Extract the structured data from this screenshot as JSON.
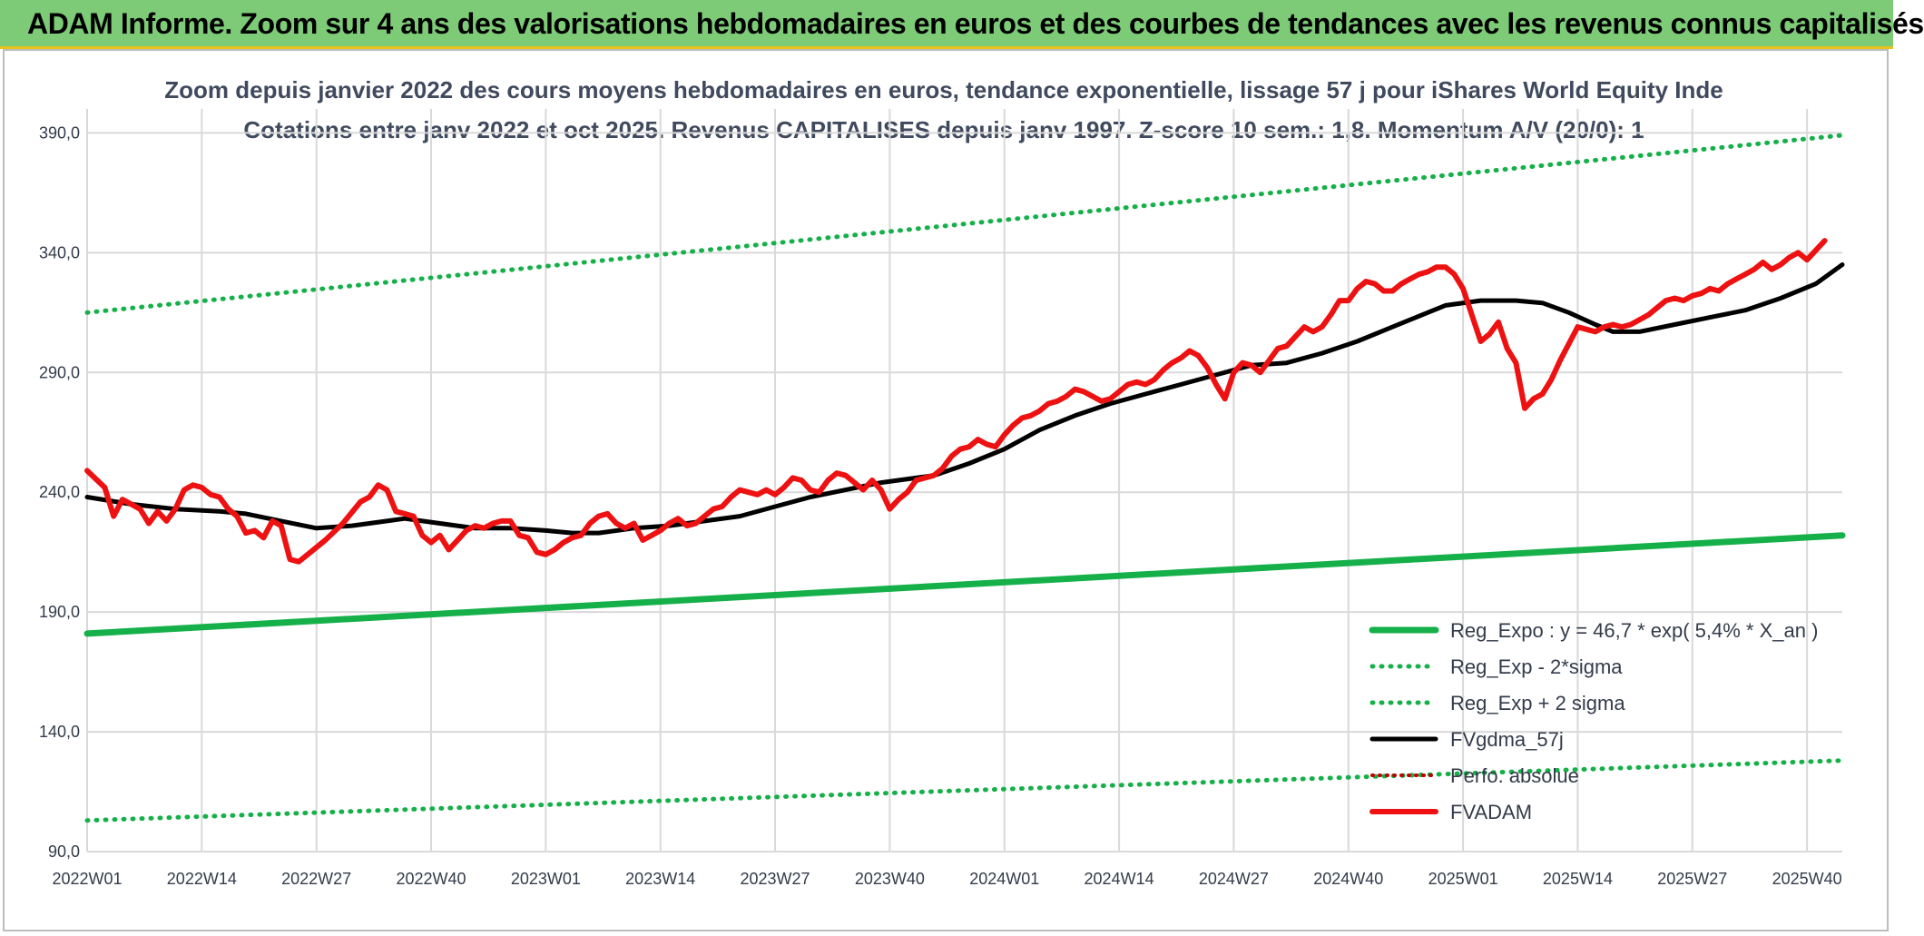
{
  "header": {
    "title": "ADAM Informe. Zoom sur 4 ans des valorisations hebdomadaires en euros et des courbes de tendances avec les revenus connus capitalisés"
  },
  "chart_data": {
    "type": "line",
    "title_line1": "Zoom depuis janvier 2022 des cours moyens hebdomadaires en euros, tendance exponentielle, lissage 57 j pour iShares World Equity Inde",
    "title_line2": "Cotations entre janv 2022 et oct 2025. Revenus CAPITALISES depuis janv 1997. Z-score 10 sem.: 1,8. Momentum A/V (20/0): 1",
    "ylim": [
      90,
      400
    ],
    "y_ticks": [
      90,
      140,
      190,
      240,
      290,
      340,
      390
    ],
    "y_tick_labels": [
      "90,0",
      "140,0",
      "190,0",
      "240,0",
      "290,0",
      "340,0",
      "390,0"
    ],
    "x_tick_positions": [
      0,
      13,
      26,
      39,
      52,
      65,
      78,
      91,
      104,
      117,
      130,
      143,
      156,
      169,
      182,
      195
    ],
    "x_tick_labels": [
      "2022W01",
      "2022W14",
      "2022W27",
      "2022W40",
      "2023W01",
      "2023W14",
      "2023W27",
      "2023W40",
      "2024W01",
      "2024W14",
      "2024W27",
      "2024W40",
      "2025W01",
      "2025W14",
      "2025W27",
      "2025W40"
    ],
    "grid": true,
    "legend_position": "bottom-right",
    "colors": {
      "reg_expo": "#16b04a",
      "band": "#16b04a",
      "fvgdma": "#000000",
      "perfo": "#c00000",
      "fvadam": "#ee1111",
      "grid": "#d9d9d9"
    },
    "series": [
      {
        "key": "reg_expo",
        "name": "Reg_Expo : y = 46,7 * exp( 5,4% *  X_an )",
        "style": "solid-thick",
        "points": [
          [
            0,
            181
          ],
          [
            199,
            222
          ]
        ]
      },
      {
        "key": "band_low",
        "name": "Reg_Exp - 2*sigma",
        "style": "dotted",
        "points": [
          [
            0,
            103
          ],
          [
            199,
            128
          ]
        ]
      },
      {
        "key": "band_high",
        "name": "Reg_Exp + 2 sigma",
        "style": "dotted",
        "points": [
          [
            0,
            315
          ],
          [
            199,
            389
          ]
        ]
      },
      {
        "key": "fvgdma",
        "name": "FVgdma_57j",
        "style": "solid",
        "points": [
          [
            0,
            238
          ],
          [
            5,
            235
          ],
          [
            10,
            233
          ],
          [
            15,
            232
          ],
          [
            18,
            231
          ],
          [
            22,
            228
          ],
          [
            26,
            225
          ],
          [
            30,
            226
          ],
          [
            34,
            228
          ],
          [
            36,
            229
          ],
          [
            40,
            227
          ],
          [
            44,
            225
          ],
          [
            48,
            225
          ],
          [
            52,
            224
          ],
          [
            55,
            223
          ],
          [
            58,
            223
          ],
          [
            62,
            225
          ],
          [
            66,
            226
          ],
          [
            70,
            228
          ],
          [
            74,
            230
          ],
          [
            78,
            234
          ],
          [
            82,
            238
          ],
          [
            86,
            241
          ],
          [
            90,
            244
          ],
          [
            92,
            245
          ],
          [
            96,
            247
          ],
          [
            100,
            252
          ],
          [
            104,
            258
          ],
          [
            108,
            266
          ],
          [
            112,
            272
          ],
          [
            116,
            277
          ],
          [
            120,
            281
          ],
          [
            124,
            285
          ],
          [
            128,
            289
          ],
          [
            132,
            293
          ],
          [
            136,
            294
          ],
          [
            140,
            298
          ],
          [
            144,
            303
          ],
          [
            148,
            309
          ],
          [
            152,
            315
          ],
          [
            154,
            318
          ],
          [
            158,
            320
          ],
          [
            162,
            320
          ],
          [
            165,
            319
          ],
          [
            168,
            315
          ],
          [
            171,
            310
          ],
          [
            173,
            307
          ],
          [
            176,
            307
          ],
          [
            180,
            310
          ],
          [
            184,
            313
          ],
          [
            188,
            316
          ],
          [
            192,
            321
          ],
          [
            196,
            327
          ],
          [
            199,
            335
          ]
        ]
      },
      {
        "key": "perfo",
        "name": "Perfo. absolue",
        "style": "dotted-red",
        "points": []
      },
      {
        "key": "fvadam",
        "name": "FVADAM",
        "style": "solid-thick",
        "points": [
          [
            0,
            249
          ],
          [
            2,
            242
          ],
          [
            3,
            230
          ],
          [
            4,
            237
          ],
          [
            5,
            235
          ],
          [
            6,
            233
          ],
          [
            7,
            227
          ],
          [
            8,
            232
          ],
          [
            9,
            228
          ],
          [
            10,
            233
          ],
          [
            11,
            241
          ],
          [
            12,
            243
          ],
          [
            13,
            242
          ],
          [
            14,
            239
          ],
          [
            15,
            238
          ],
          [
            16,
            233
          ],
          [
            17,
            230
          ],
          [
            18,
            223
          ],
          [
            19,
            224
          ],
          [
            20,
            221
          ],
          [
            21,
            228
          ],
          [
            22,
            226
          ],
          [
            23,
            212
          ],
          [
            24,
            211
          ],
          [
            25,
            214
          ],
          [
            27,
            220
          ],
          [
            29,
            227
          ],
          [
            31,
            236
          ],
          [
            32,
            238
          ],
          [
            33,
            243
          ],
          [
            34,
            241
          ],
          [
            35,
            232
          ],
          [
            36,
            231
          ],
          [
            37,
            230
          ],
          [
            38,
            222
          ],
          [
            39,
            219
          ],
          [
            40,
            222
          ],
          [
            41,
            216
          ],
          [
            42,
            220
          ],
          [
            43,
            224
          ],
          [
            44,
            226
          ],
          [
            45,
            225
          ],
          [
            46,
            227
          ],
          [
            47,
            228
          ],
          [
            48,
            228
          ],
          [
            49,
            222
          ],
          [
            50,
            221
          ],
          [
            51,
            215
          ],
          [
            52,
            214
          ],
          [
            53,
            216
          ],
          [
            54,
            219
          ],
          [
            55,
            221
          ],
          [
            56,
            222
          ],
          [
            57,
            227
          ],
          [
            58,
            230
          ],
          [
            59,
            231
          ],
          [
            60,
            227
          ],
          [
            61,
            225
          ],
          [
            62,
            227
          ],
          [
            63,
            220
          ],
          [
            64,
            222
          ],
          [
            65,
            224
          ],
          [
            66,
            227
          ],
          [
            67,
            229
          ],
          [
            68,
            226
          ],
          [
            69,
            227
          ],
          [
            70,
            230
          ],
          [
            71,
            233
          ],
          [
            72,
            234
          ],
          [
            73,
            238
          ],
          [
            74,
            241
          ],
          [
            75,
            240
          ],
          [
            76,
            239
          ],
          [
            77,
            241
          ],
          [
            78,
            239
          ],
          [
            79,
            242
          ],
          [
            80,
            246
          ],
          [
            81,
            245
          ],
          [
            82,
            241
          ],
          [
            83,
            240
          ],
          [
            84,
            245
          ],
          [
            85,
            248
          ],
          [
            86,
            247
          ],
          [
            87,
            244
          ],
          [
            88,
            241
          ],
          [
            89,
            245
          ],
          [
            90,
            241
          ],
          [
            91,
            233
          ],
          [
            92,
            237
          ],
          [
            93,
            240
          ],
          [
            94,
            245
          ],
          [
            95,
            246
          ],
          [
            96,
            247
          ],
          [
            97,
            250
          ],
          [
            98,
            255
          ],
          [
            99,
            258
          ],
          [
            100,
            259
          ],
          [
            101,
            262
          ],
          [
            102,
            260
          ],
          [
            103,
            259
          ],
          [
            104,
            264
          ],
          [
            105,
            268
          ],
          [
            106,
            271
          ],
          [
            107,
            272
          ],
          [
            108,
            274
          ],
          [
            109,
            277
          ],
          [
            110,
            278
          ],
          [
            111,
            280
          ],
          [
            112,
            283
          ],
          [
            113,
            282
          ],
          [
            114,
            280
          ],
          [
            115,
            278
          ],
          [
            116,
            279
          ],
          [
            117,
            282
          ],
          [
            118,
            285
          ],
          [
            119,
            286
          ],
          [
            120,
            285
          ],
          [
            121,
            287
          ],
          [
            122,
            291
          ],
          [
            123,
            294
          ],
          [
            124,
            296
          ],
          [
            125,
            299
          ],
          [
            126,
            297
          ],
          [
            127,
            292
          ],
          [
            128,
            285
          ],
          [
            129,
            279
          ],
          [
            130,
            290
          ],
          [
            131,
            294
          ],
          [
            132,
            293
          ],
          [
            133,
            290
          ],
          [
            134,
            295
          ],
          [
            135,
            300
          ],
          [
            136,
            301
          ],
          [
            137,
            305
          ],
          [
            138,
            309
          ],
          [
            139,
            307
          ],
          [
            140,
            309
          ],
          [
            141,
            314
          ],
          [
            142,
            320
          ],
          [
            143,
            320
          ],
          [
            144,
            325
          ],
          [
            145,
            328
          ],
          [
            146,
            327
          ],
          [
            147,
            324
          ],
          [
            148,
            324
          ],
          [
            149,
            327
          ],
          [
            150,
            329
          ],
          [
            151,
            331
          ],
          [
            152,
            332
          ],
          [
            153,
            334
          ],
          [
            154,
            334
          ],
          [
            155,
            331
          ],
          [
            156,
            325
          ],
          [
            157,
            314
          ],
          [
            158,
            303
          ],
          [
            159,
            306
          ],
          [
            160,
            311
          ],
          [
            161,
            300
          ],
          [
            162,
            294
          ],
          [
            163,
            275
          ],
          [
            164,
            279
          ],
          [
            165,
            281
          ],
          [
            166,
            287
          ],
          [
            167,
            295
          ],
          [
            168,
            302
          ],
          [
            169,
            309
          ],
          [
            170,
            308
          ],
          [
            171,
            307
          ],
          [
            172,
            309
          ],
          [
            173,
            310
          ],
          [
            174,
            309
          ],
          [
            175,
            310
          ],
          [
            176,
            312
          ],
          [
            177,
            314
          ],
          [
            178,
            317
          ],
          [
            179,
            320
          ],
          [
            180,
            321
          ],
          [
            181,
            320
          ],
          [
            182,
            322
          ],
          [
            183,
            323
          ],
          [
            184,
            325
          ],
          [
            185,
            324
          ],
          [
            186,
            327
          ],
          [
            187,
            329
          ],
          [
            188,
            331
          ],
          [
            189,
            333
          ],
          [
            190,
            336
          ],
          [
            191,
            333
          ],
          [
            192,
            335
          ],
          [
            193,
            338
          ],
          [
            194,
            340
          ],
          [
            195,
            337
          ],
          [
            196,
            341
          ],
          [
            197,
            345
          ]
        ]
      }
    ]
  }
}
